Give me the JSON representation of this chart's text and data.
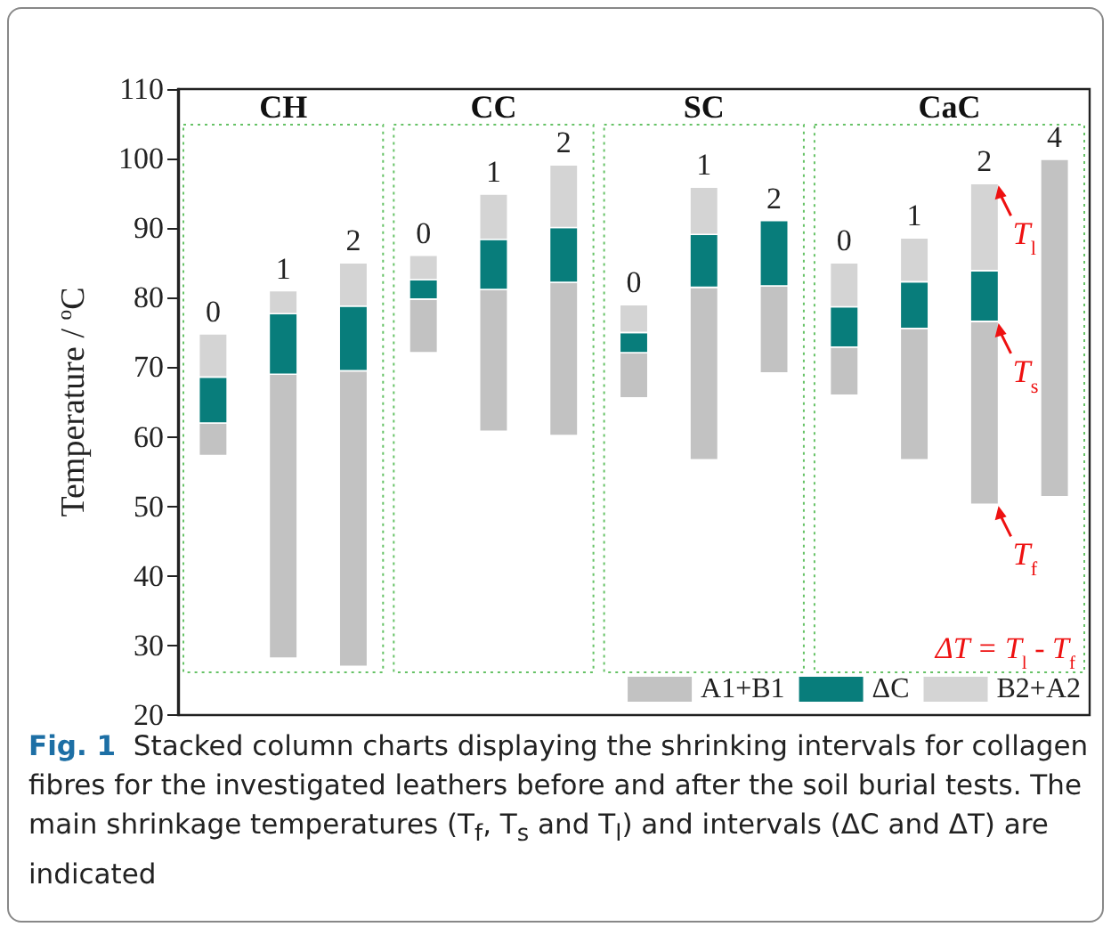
{
  "chart_data": {
    "type": "bar",
    "ylabel": "Temperature / $^{o}$C",
    "categories": [
      "0",
      "1",
      "2",
      "0",
      "1",
      "2",
      "0",
      "1",
      "2",
      "0",
      "1",
      "2",
      "4"
    ],
    "series": [
      {
        "name": "A1+B1",
        "color": "#c2c2c2",
        "base": [
          57.3,
          28.2,
          27.0,
          72.1,
          60.8,
          60.2,
          65.6,
          56.7,
          69.2,
          66.0,
          56.7,
          50.3,
          51.4
        ],
        "values": [
          4.7,
          40.8,
          42.5,
          7.7,
          20.4,
          22.0,
          6.5,
          24.8,
          12.5,
          6.9,
          18.9,
          26.3,
          48.5
        ]
      },
      {
        "name": "ΔC",
        "color": "#087d7b",
        "base": [
          62.0,
          69.0,
          69.5,
          79.8,
          81.2,
          82.2,
          72.1,
          81.5,
          81.7,
          72.9,
          75.6,
          76.6,
          null
        ],
        "values": [
          6.6,
          8.7,
          9.3,
          2.8,
          7.2,
          7.9,
          2.9,
          7.6,
          9.4,
          5.8,
          6.7,
          7.3,
          null
        ]
      },
      {
        "name": "B2+A2",
        "color": "#d4d4d4",
        "base": [
          68.6,
          77.7,
          78.8,
          82.6,
          88.4,
          90.1,
          75.0,
          89.1,
          null,
          78.7,
          82.3,
          83.9,
          null
        ],
        "values": [
          6.2,
          3.3,
          6.2,
          3.5,
          6.5,
          9.0,
          4.0,
          6.8,
          null,
          6.3,
          6.3,
          12.5,
          null
        ]
      }
    ],
    "ylim": [
      20,
      110
    ],
    "yticks": [
      20,
      30,
      40,
      50,
      60,
      70,
      80,
      90,
      100,
      110
    ],
    "grid": false,
    "legend": "bottom right",
    "tick_labels": "y",
    "annotations": [
      "CH",
      "CC",
      "SC",
      "CaC",
      "T$_{l}$",
      "T$_{s}$",
      "T$_{f}$",
      "ΔT = T$_{l}$ - T$_{f}$",
      "Fig. 1  Stacked column charts displaying the shrinking intervals for collagen fibres for the investigated leathers before and after the soil burial tests. The main shrinkage temperatures (T$_{f}$, T$_{s}$ and T$_{l}$) and intervals (ΔC and ΔT) are indicated"
    ]
  }
}
